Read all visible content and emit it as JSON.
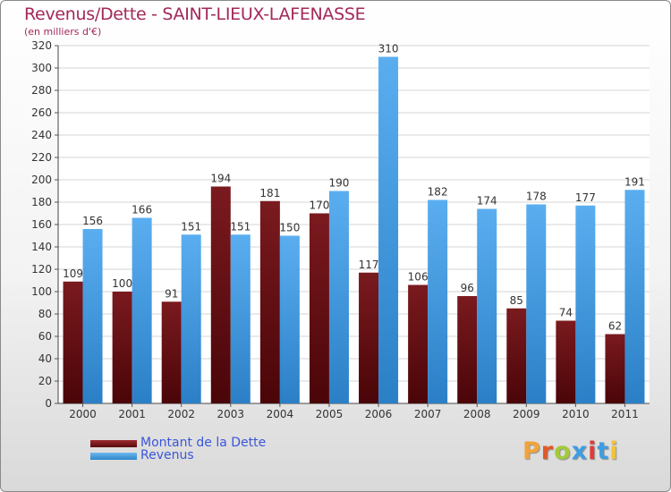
{
  "colors": {
    "dette": "#6b0d12",
    "revenus": "#3f9ce0",
    "title": "#a3285a",
    "legend_text": "#3b56d9",
    "logo": [
      "#f2a33a",
      "#e05a2a",
      "#a3c93a",
      "#3f9ce0",
      "#e03a3a",
      "#3f9ce0",
      "#f2c33a"
    ]
  },
  "logo": {
    "text": "Proxiti",
    "icon": "proxiti-logo"
  },
  "chart_data": {
    "type": "bar",
    "title": "Revenus/Dette - SAINT-LIEUX-LAFENASSE",
    "subtitle": "(en milliers d'€)",
    "xlabel": "",
    "ylabel": "",
    "ylim": [
      0,
      320
    ],
    "yticks": [
      0,
      20,
      40,
      60,
      80,
      100,
      120,
      140,
      160,
      180,
      200,
      220,
      240,
      260,
      280,
      300,
      320
    ],
    "grid": true,
    "legend_position": "bottom-left",
    "categories": [
      "2000",
      "2001",
      "2002",
      "2003",
      "2004",
      "2005",
      "2006",
      "2007",
      "2008",
      "2009",
      "2010",
      "2011"
    ],
    "series": [
      {
        "name": "Montant de la Dette",
        "values": [
          109,
          100,
          91,
          194,
          181,
          170,
          117,
          106,
          96,
          85,
          74,
          62
        ]
      },
      {
        "name": "Revenus",
        "values": [
          156,
          166,
          151,
          151,
          150,
          190,
          310,
          182,
          174,
          178,
          177,
          191
        ]
      }
    ]
  }
}
